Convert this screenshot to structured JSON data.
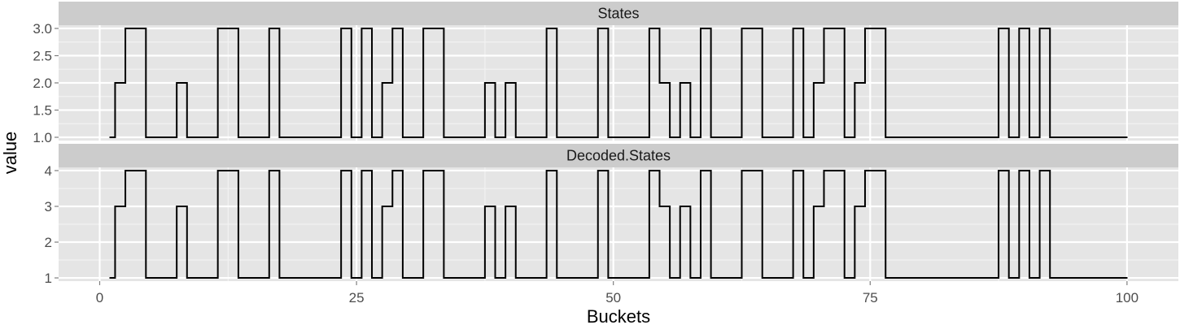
{
  "chart_data": {
    "type": "line",
    "step": true,
    "xlabel": "Buckets",
    "ylabel": "value",
    "xlim": [
      -4,
      105
    ],
    "xticks": [
      0,
      25,
      50,
      75,
      100
    ],
    "grid": true,
    "colors": {
      "panel_bg": "#e5e5e5",
      "strip_bg": "#cccccc",
      "grid_major": "#ffffff",
      "grid_minor": "#f2f2f2",
      "line": "#000000"
    },
    "panels": [
      {
        "title": "States",
        "ylim": [
          0.94,
          3.06
        ],
        "yticks": [
          1.0,
          1.5,
          2.0,
          2.5,
          3.0
        ],
        "yticklabels": [
          "1.0",
          "1.5",
          "2.0",
          "2.5",
          "3.0"
        ],
        "x": [
          1,
          2,
          3,
          4,
          5,
          6,
          7,
          8,
          9,
          10,
          11,
          12,
          13,
          14,
          15,
          16,
          17,
          18,
          19,
          20,
          21,
          22,
          23,
          24,
          25,
          26,
          27,
          28,
          29,
          30,
          31,
          32,
          33,
          34,
          35,
          36,
          37,
          38,
          39,
          40,
          41,
          42,
          43,
          44,
          45,
          46,
          47,
          48,
          49,
          50,
          51,
          52,
          53,
          54,
          55,
          56,
          57,
          58,
          59,
          60,
          61,
          62,
          63,
          64,
          65,
          66,
          67,
          68,
          69,
          70,
          71,
          72,
          73,
          74,
          75,
          76,
          77,
          78,
          79,
          80,
          81,
          82,
          83,
          84,
          85,
          86,
          87,
          88,
          89,
          90,
          91,
          92,
          93,
          94,
          95,
          96,
          97,
          98,
          99,
          100
        ],
        "values": [
          1,
          2,
          3,
          3,
          1,
          1,
          1,
          2,
          1,
          1,
          1,
          3,
          3,
          1,
          1,
          1,
          3,
          1,
          1,
          1,
          1,
          1,
          1,
          3,
          1,
          3,
          1,
          2,
          3,
          1,
          1,
          3,
          3,
          1,
          1,
          1,
          1,
          2,
          1,
          2,
          1,
          1,
          1,
          3,
          1,
          1,
          1,
          1,
          3,
          1,
          1,
          1,
          1,
          3,
          2,
          1,
          2,
          1,
          3,
          1,
          1,
          1,
          3,
          3,
          1,
          1,
          1,
          3,
          1,
          2,
          3,
          3,
          1,
          2,
          3,
          3,
          1,
          1,
          1,
          1,
          1,
          1,
          1,
          1,
          1,
          1,
          1,
          3,
          1,
          3,
          1,
          3,
          1,
          1,
          1,
          1,
          1,
          1,
          1,
          1
        ]
      },
      {
        "title": "Decoded.States",
        "ylim": [
          0.91,
          4.09
        ],
        "yticks": [
          1,
          2,
          3,
          4
        ],
        "yticklabels": [
          "1",
          "2",
          "3",
          "4"
        ],
        "x": [
          1,
          2,
          3,
          4,
          5,
          6,
          7,
          8,
          9,
          10,
          11,
          12,
          13,
          14,
          15,
          16,
          17,
          18,
          19,
          20,
          21,
          22,
          23,
          24,
          25,
          26,
          27,
          28,
          29,
          30,
          31,
          32,
          33,
          34,
          35,
          36,
          37,
          38,
          39,
          40,
          41,
          42,
          43,
          44,
          45,
          46,
          47,
          48,
          49,
          50,
          51,
          52,
          53,
          54,
          55,
          56,
          57,
          58,
          59,
          60,
          61,
          62,
          63,
          64,
          65,
          66,
          67,
          68,
          69,
          70,
          71,
          72,
          73,
          74,
          75,
          76,
          77,
          78,
          79,
          80,
          81,
          82,
          83,
          84,
          85,
          86,
          87,
          88,
          89,
          90,
          91,
          92,
          93,
          94,
          95,
          96,
          97,
          98,
          99,
          100
        ],
        "values": [
          1,
          3,
          4,
          4,
          1,
          1,
          1,
          3,
          1,
          1,
          1,
          4,
          4,
          1,
          1,
          1,
          4,
          1,
          1,
          1,
          1,
          1,
          1,
          4,
          1,
          4,
          1,
          3,
          4,
          1,
          1,
          4,
          4,
          1,
          1,
          1,
          1,
          3,
          1,
          3,
          1,
          1,
          1,
          4,
          1,
          1,
          1,
          1,
          4,
          1,
          1,
          1,
          1,
          4,
          3,
          1,
          3,
          1,
          4,
          1,
          1,
          1,
          4,
          4,
          1,
          1,
          1,
          4,
          1,
          3,
          4,
          4,
          1,
          3,
          4,
          4,
          1,
          1,
          1,
          1,
          1,
          1,
          1,
          1,
          1,
          1,
          1,
          4,
          1,
          4,
          1,
          4,
          1,
          1,
          1,
          1,
          1,
          1,
          1,
          1
        ]
      }
    ]
  }
}
